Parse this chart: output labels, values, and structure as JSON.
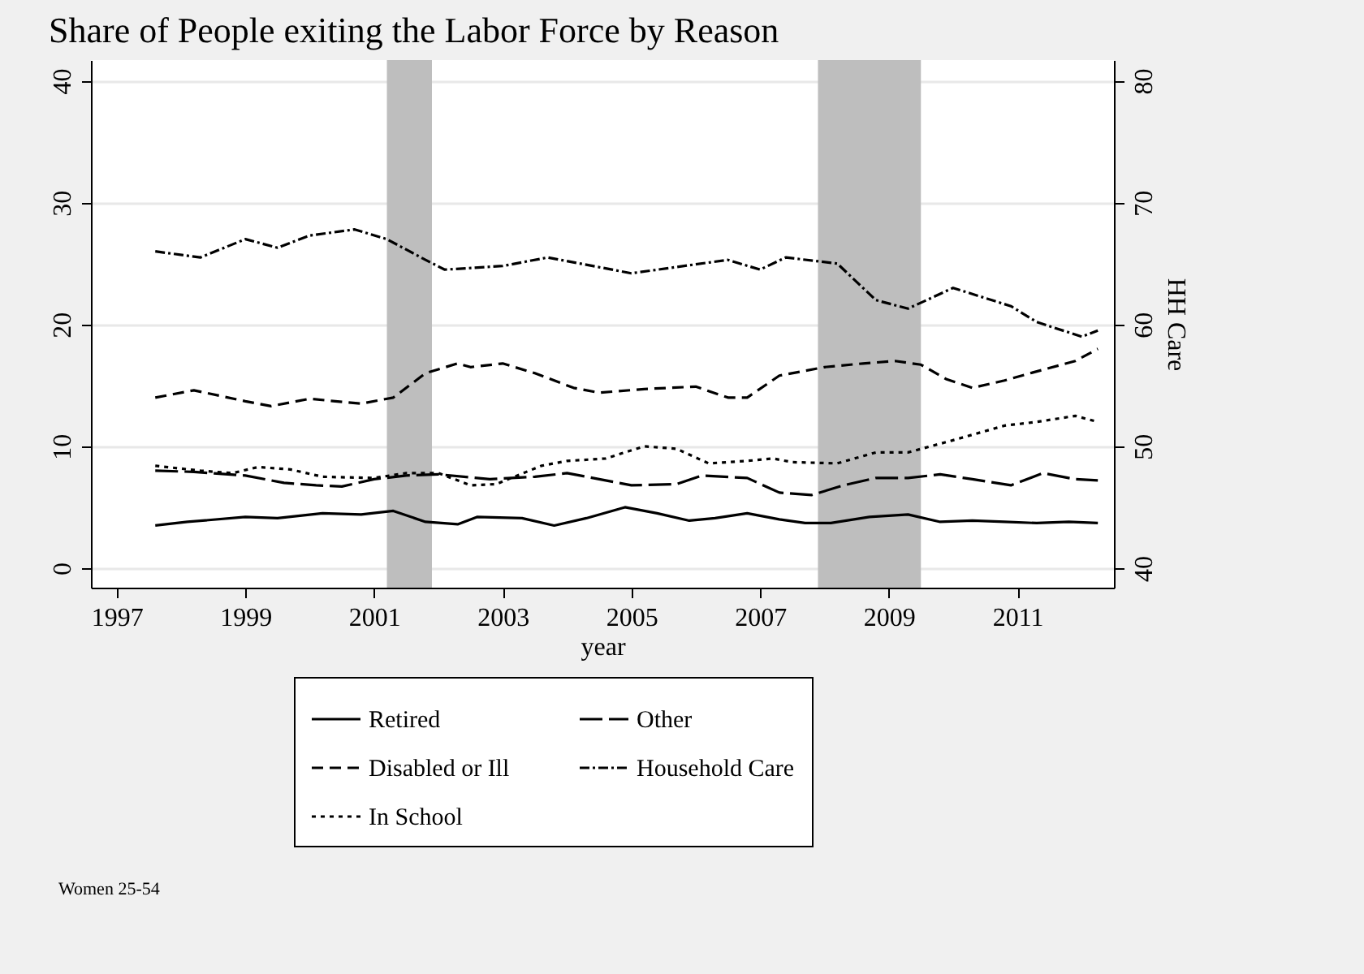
{
  "chart_data": {
    "type": "line",
    "title": "Share of People exiting the Labor Force by Reason",
    "xlabel": "year",
    "y2label": "HH Care",
    "xlim": [
      1996.6,
      2012.5
    ],
    "xticks": [
      1997,
      1999,
      2001,
      2003,
      2005,
      2007,
      2009,
      2011
    ],
    "ylim": [
      -1.6,
      41.7
    ],
    "yticks": [
      0,
      10,
      20,
      30,
      40
    ],
    "y2lim": [
      38.4,
      81.7
    ],
    "y2ticks": [
      40,
      50,
      60,
      70,
      80
    ],
    "grid": "y",
    "legend": "bottom",
    "bands": [
      {
        "axis": "x",
        "from": 2001.2,
        "to": 2001.9,
        "color": "#bebebe"
      },
      {
        "axis": "x",
        "from": 2007.9,
        "to": 2009.5,
        "color": "#bebebe"
      }
    ],
    "annotations": [
      "Women 25-54"
    ],
    "series": [
      {
        "name": "Retired",
        "color": "#000000",
        "line_style": "solid",
        "x": [
          1997.6,
          1998.1,
          1999,
          1999.5,
          2000.2,
          2000.8,
          2001.3,
          2001.8,
          2002.3,
          2002.6,
          2003.3,
          2003.8,
          2004.3,
          2004.9,
          2005.4,
          2005.9,
          2006.3,
          2006.8,
          2007.3,
          2007.7,
          2008.1,
          2008.7,
          2009.3,
          2009.8,
          2010.3,
          2010.8,
          2011.3,
          2011.8,
          2012.25
        ],
        "values": [
          3.5,
          3.8,
          4.2,
          4.1,
          4.5,
          4.4,
          4.7,
          3.8,
          3.6,
          4.2,
          4.1,
          3.5,
          4.1,
          5,
          4.5,
          3.9,
          4.1,
          4.5,
          4,
          3.7,
          3.7,
          4.2,
          4.4,
          3.8,
          3.9,
          3.8,
          3.7,
          3.8,
          3.7
        ]
      },
      {
        "name": "Disabled or Ill",
        "color": "#000000",
        "line_style": "dashed",
        "x": [
          1997.6,
          1998.2,
          1999,
          1999.4,
          2000,
          2000.8,
          2001.3,
          2001.8,
          2002.3,
          2002.5,
          2003,
          2003.5,
          2004.1,
          2004.5,
          2005.2,
          2006,
          2006.5,
          2006.8,
          2007.3,
          2008,
          2008.6,
          2009.1,
          2009.5,
          2009.9,
          2010.3,
          2010.8,
          2011.2,
          2011.9,
          2012.25
        ],
        "values": [
          14,
          14.6,
          13.7,
          13.3,
          13.9,
          13.5,
          14,
          16,
          16.8,
          16.5,
          16.8,
          16,
          14.8,
          14.4,
          14.7,
          14.9,
          14,
          14,
          15.8,
          16.5,
          16.8,
          17,
          16.7,
          15.5,
          14.8,
          15.4,
          16,
          17,
          18
        ]
      },
      {
        "name": "In School",
        "color": "#000000",
        "line_style": "dotted",
        "x": [
          1997.6,
          1998.3,
          1998.8,
          1999.2,
          1999.7,
          2000.2,
          2001,
          2001.5,
          2002,
          2002.5,
          2002.9,
          2003.6,
          2004,
          2004.6,
          2005.2,
          2005.7,
          2006.2,
          2006.8,
          2007.2,
          2007.5,
          2008.2,
          2008.8,
          2009.3,
          2010,
          2010.8,
          2011.3,
          2011.9,
          2012.25
        ],
        "values": [
          8.4,
          8,
          7.8,
          8.3,
          8.1,
          7.5,
          7.4,
          7.8,
          7.8,
          6.8,
          6.9,
          8.4,
          8.8,
          9,
          10,
          9.8,
          8.6,
          8.8,
          9,
          8.7,
          8.6,
          9.5,
          9.5,
          10.5,
          11.7,
          12,
          12.5,
          12
        ]
      },
      {
        "name": "Other",
        "color": "#000000",
        "line_style": "longdash",
        "x": [
          1997.6,
          1998.2,
          1999,
          1999.6,
          2000.1,
          2000.5,
          2001,
          2001.5,
          2002,
          2002.8,
          2003.5,
          2004,
          2004.5,
          2005,
          2005.7,
          2006.1,
          2006.8,
          2007.3,
          2007.8,
          2008.3,
          2008.8,
          2009.3,
          2009.8,
          2010.3,
          2010.9,
          2011.4,
          2011.9,
          2012.25
        ],
        "values": [
          8,
          7.9,
          7.6,
          7,
          6.8,
          6.7,
          7.3,
          7.6,
          7.7,
          7.3,
          7.5,
          7.8,
          7.3,
          6.8,
          6.9,
          7.6,
          7.4,
          6.2,
          6,
          6.8,
          7.4,
          7.4,
          7.7,
          7.3,
          6.8,
          7.8,
          7.3,
          7.2
        ]
      },
      {
        "name": "Household Care",
        "color": "#000000",
        "line_style": "dashdot",
        "axis": "y2",
        "x": [
          1997.6,
          1998.3,
          1999,
          1999.5,
          2000,
          2000.7,
          2001.2,
          2001.8,
          2002.1,
          2003,
          2003.7,
          2005,
          2006.5,
          2007,
          2007.4,
          2008.2,
          2008.8,
          2009.3,
          2010,
          2010.9,
          2011.3,
          2012,
          2012.25
        ],
        "values": [
          66,
          65.5,
          67,
          66.3,
          67.3,
          67.8,
          67,
          65.3,
          64.5,
          64.8,
          65.5,
          64.2,
          65.3,
          64.5,
          65.5,
          65,
          62,
          61.3,
          63,
          61.5,
          60.2,
          59,
          59.5
        ]
      }
    ]
  }
}
